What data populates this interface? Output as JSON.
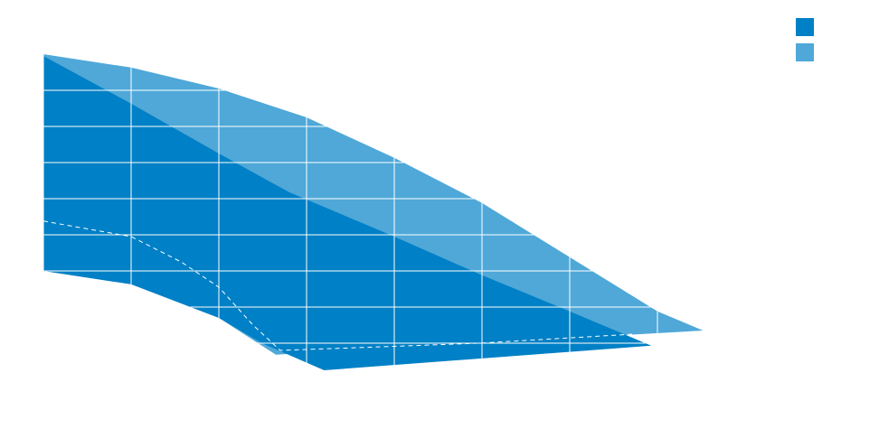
{
  "chart_data": {
    "type": "area",
    "series": [
      {
        "color": "#4fa8d8",
        "x": [
          0,
          1,
          2,
          3,
          4,
          5,
          6,
          7,
          7.52,
          2.65,
          2,
          1,
          0
        ],
        "values": [
          9,
          8.63,
          8.05,
          7.25,
          6.13,
          4.88,
          3.38,
          1.88,
          1.35,
          0.68,
          1.7,
          2.63,
          3.0
        ]
      },
      {
        "color": "#0080c6",
        "x": [
          0,
          1,
          2,
          2.8,
          4,
          5,
          6,
          6.93,
          3.2,
          2.49,
          2,
          1,
          0
        ],
        "values": [
          8.95,
          7.63,
          6.25,
          5.18,
          3.95,
          2.88,
          1.88,
          0.93,
          0.25,
          1.0,
          1.7,
          2.63,
          3.0
        ]
      },
      {
        "color": "#ffffff",
        "dashed": true,
        "x": [
          0,
          1,
          1.57,
          2,
          2.39,
          2.7,
          3.63,
          4.97,
          6.72
        ],
        "values": [
          4.38,
          3.95,
          3.25,
          2.55,
          1.5,
          0.8,
          0.88,
          1.0,
          1.25
        ]
      }
    ],
    "xlim": [
      0,
      9.5
    ],
    "ylim": [
      0,
      10.5
    ],
    "xticks": [
      0,
      1,
      2,
      3,
      4,
      5,
      6,
      7
    ],
    "yticks": [
      1,
      2,
      3,
      4,
      5,
      6,
      7,
      8
    ],
    "grid": true
  }
}
